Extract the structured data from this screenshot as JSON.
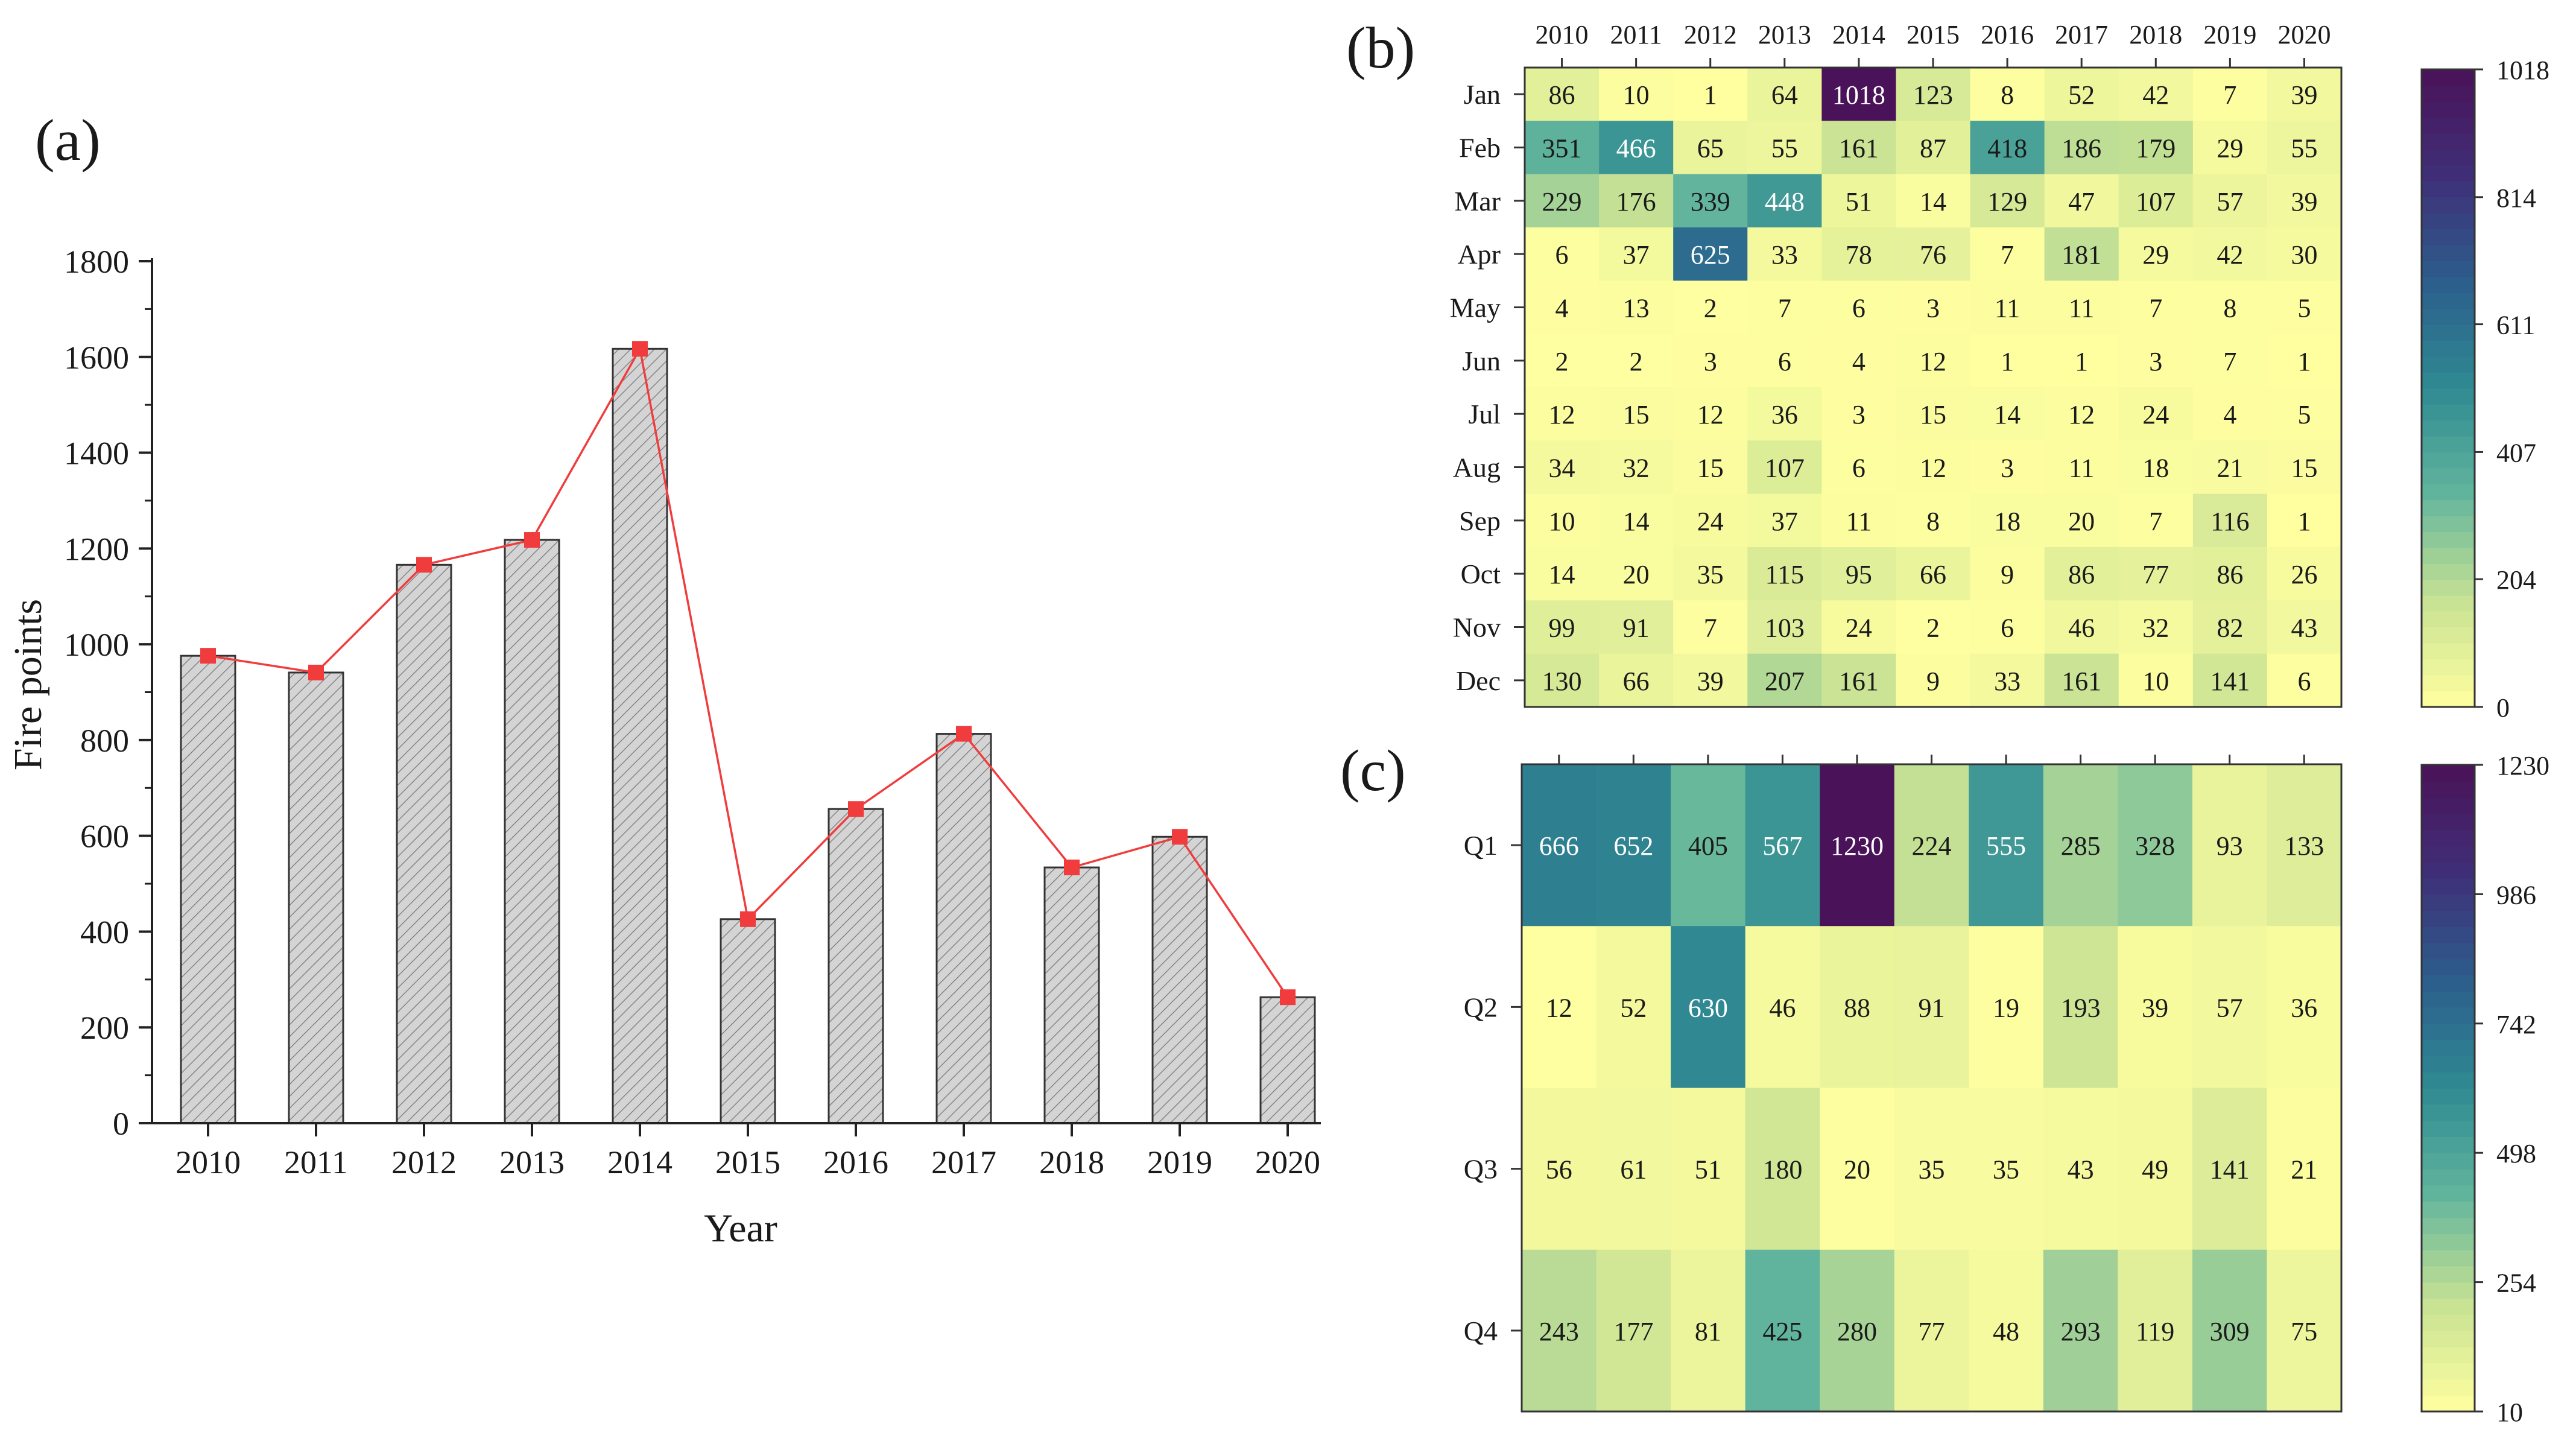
{
  "chart_data": [
    {
      "type": "bar",
      "panel_label": "(a)",
      "xlabel": "Year",
      "ylabel": "Fire points",
      "ylim": [
        0,
        1800
      ],
      "yticks": [
        0,
        200,
        400,
        600,
        800,
        1000,
        1200,
        1400,
        1600,
        1800
      ],
      "categories": [
        "2010",
        "2011",
        "2012",
        "2013",
        "2014",
        "2015",
        "2016",
        "2017",
        "2018",
        "2019",
        "2020"
      ],
      "values": [
        976,
        941,
        1166,
        1218,
        1617,
        426,
        656,
        813,
        534,
        598,
        263
      ],
      "overlay": "line",
      "bar_color": "#d4d4d4",
      "line_color": "#f03c3c",
      "grid": false
    },
    {
      "type": "heatmap",
      "panel_label": "(b)",
      "x": [
        "2010",
        "2011",
        "2012",
        "2013",
        "2014",
        "2015",
        "2016",
        "2017",
        "2018",
        "2019",
        "2020"
      ],
      "y": [
        "Jan",
        "Feb",
        "Mar",
        "Apr",
        "May",
        "Jun",
        "Jul",
        "Aug",
        "Sep",
        "Oct",
        "Nov",
        "Dec"
      ],
      "values": [
        [
          86,
          10,
          1,
          64,
          1018,
          123,
          8,
          52,
          42,
          7,
          39
        ],
        [
          351,
          466,
          65,
          55,
          161,
          87,
          418,
          186,
          179,
          29,
          55
        ],
        [
          229,
          176,
          339,
          448,
          51,
          14,
          129,
          47,
          107,
          57,
          39
        ],
        [
          6,
          37,
          625,
          33,
          78,
          76,
          7,
          181,
          29,
          42,
          30
        ],
        [
          4,
          13,
          2,
          7,
          6,
          3,
          11,
          11,
          7,
          8,
          5
        ],
        [
          2,
          2,
          3,
          6,
          4,
          12,
          1,
          1,
          3,
          7,
          1
        ],
        [
          12,
          15,
          12,
          36,
          3,
          15,
          14,
          12,
          24,
          4,
          5
        ],
        [
          34,
          32,
          15,
          107,
          6,
          12,
          3,
          11,
          18,
          21,
          15
        ],
        [
          10,
          14,
          24,
          37,
          11,
          8,
          18,
          20,
          7,
          116,
          1
        ],
        [
          14,
          20,
          35,
          115,
          95,
          66,
          9,
          86,
          77,
          86,
          26
        ],
        [
          99,
          91,
          7,
          103,
          24,
          2,
          6,
          46,
          32,
          82,
          43
        ],
        [
          130,
          66,
          39,
          207,
          161,
          9,
          33,
          161,
          10,
          141,
          6
        ]
      ],
      "colorbar_ticks": [
        0,
        204,
        407,
        611,
        814,
        1018
      ],
      "vmin": 0,
      "vmax": 1018
    },
    {
      "type": "heatmap",
      "panel_label": "(c)",
      "x": [
        "2010",
        "2011",
        "2012",
        "2013",
        "2014",
        "2015",
        "2016",
        "2017",
        "2018",
        "2019",
        "2020"
      ],
      "y": [
        "Q1",
        "Q2",
        "Q3",
        "Q4"
      ],
      "values": [
        [
          666,
          652,
          405,
          567,
          1230,
          224,
          555,
          285,
          328,
          93,
          133
        ],
        [
          12,
          52,
          630,
          46,
          88,
          91,
          19,
          193,
          39,
          57,
          36
        ],
        [
          56,
          61,
          51,
          180,
          20,
          35,
          35,
          43,
          49,
          141,
          21
        ],
        [
          243,
          177,
          81,
          425,
          280,
          77,
          48,
          293,
          119,
          309,
          75
        ]
      ],
      "colorbar_ticks": [
        10,
        254,
        498,
        742,
        986,
        1230
      ],
      "vmin": 10,
      "vmax": 1230
    }
  ],
  "colormap": [
    "#ffffa0",
    "#c8e294",
    "#62b59c",
    "#2f8a92",
    "#2c5e8c",
    "#3f2f78",
    "#4a1258"
  ]
}
